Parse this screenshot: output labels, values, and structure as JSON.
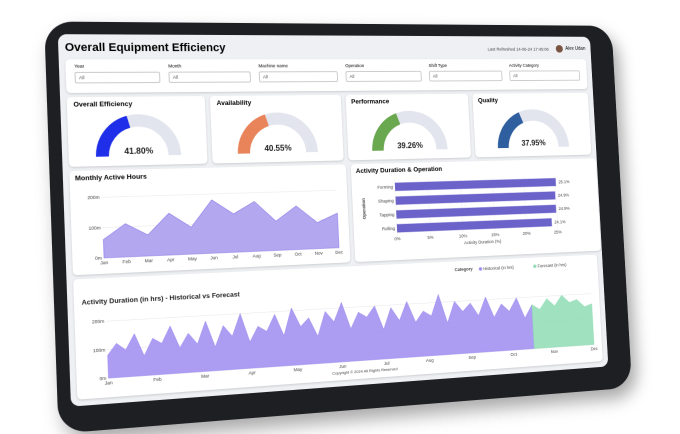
{
  "header": {
    "title": "Overall Equipment Efficiency",
    "last_refreshed": "Last Refreshed 14-06-24 17:45:06",
    "user": "Alex Udan"
  },
  "filters": [
    {
      "label": "Year",
      "value": "All"
    },
    {
      "label": "Month",
      "value": "All"
    },
    {
      "label": "Machine name",
      "value": "All"
    },
    {
      "label": "Operation",
      "value": "All"
    },
    {
      "label": "Shift Type",
      "value": "All"
    },
    {
      "label": "Activity Category",
      "value": "All"
    }
  ],
  "gauges": [
    {
      "title": "Overall Efficiency",
      "value": 41.8,
      "value_label": "41.80%",
      "color": "#1f2ee8"
    },
    {
      "title": "Availability",
      "value": 40.55,
      "value_label": "40.55%",
      "color": "#e8835a"
    },
    {
      "title": "Performance",
      "value": 39.26,
      "value_label": "39.26%",
      "color": "#6aa84f"
    },
    {
      "title": "Quality",
      "value": 37.95,
      "value_label": "37.95%",
      "color": "#2f5f9e"
    }
  ],
  "monthly_active_hours": {
    "title": "Monthly Active Hours",
    "categories": [
      "Jan",
      "Feb",
      "Mar",
      "Apr",
      "May",
      "Jun",
      "Jul",
      "Aug",
      "Sep",
      "Oct",
      "Nov",
      "Dec"
    ],
    "values": [
      60,
      110,
      70,
      140,
      90,
      180,
      130,
      170,
      100,
      150,
      90,
      120
    ],
    "ylim": [
      0,
      230
    ],
    "yticks": [
      {
        "value": 0,
        "label": "0m"
      },
      {
        "value": 100,
        "label": "100m"
      },
      {
        "value": 200,
        "label": "200m"
      }
    ],
    "color": "#b3a8f0"
  },
  "activity_operation": {
    "title": "Activity Duration & Operation",
    "categories": [
      "Forming",
      "Shaping",
      "Tapping",
      "Rolling"
    ],
    "values": [
      25.1,
      24.9,
      24.9,
      24.1
    ],
    "value_labels": [
      "25.1%",
      "24.9%",
      "24.9%",
      "24.1%"
    ],
    "xlim": [
      0,
      26
    ],
    "xticks": [
      {
        "value": 0,
        "label": "0%"
      },
      {
        "value": 5,
        "label": "5%"
      },
      {
        "value": 10,
        "label": "10%"
      },
      {
        "value": 15,
        "label": "15%"
      },
      {
        "value": 20,
        "label": "20%"
      },
      {
        "value": 25,
        "label": "25%"
      }
    ],
    "x_label": "Activity Duration (%)",
    "y_label": "Operation",
    "color": "#6b63c9"
  },
  "historical_forecast": {
    "title": "Activity Duration (in hrs) - Historical vs Forecast",
    "legend_title": "Category",
    "month_labels": [
      "Jan",
      "Feb",
      "Mar",
      "Apr",
      "May",
      "Jun",
      "Jul",
      "Aug",
      "Sep",
      "Oct",
      "Nov",
      "Dec"
    ],
    "ylim": [
      0,
      240
    ],
    "yticks": [
      {
        "value": 0,
        "label": "0m"
      },
      {
        "value": 100,
        "label": "100m"
      },
      {
        "value": 200,
        "label": "200m"
      }
    ],
    "series": [
      {
        "name": "Historical (in hrs)",
        "color": "#9d8cf0",
        "values": [
          80,
          120,
          95,
          150,
          70,
          130,
          110,
          170,
          90,
          140,
          100,
          180,
          85,
          160,
          120,
          200,
          95,
          150,
          130,
          190,
          110,
          210,
          140,
          170,
          100,
          190,
          150,
          220,
          120,
          180,
          160,
          200,
          110,
          190,
          140,
          210,
          130,
          170,
          150,
          230,
          120,
          200,
          160,
          190,
          140,
          210,
          130,
          180,
          150,
          200,
          120,
          170,
          null,
          null,
          null,
          null,
          null,
          null,
          null,
          null
        ]
      },
      {
        "name": "Forecast (in hrs)",
        "color": "#8fdcb4",
        "values": [
          null,
          null,
          null,
          null,
          null,
          null,
          null,
          null,
          null,
          null,
          null,
          null,
          null,
          null,
          null,
          null,
          null,
          null,
          null,
          null,
          null,
          null,
          null,
          null,
          null,
          null,
          null,
          null,
          null,
          null,
          null,
          null,
          null,
          null,
          null,
          null,
          null,
          null,
          null,
          null,
          null,
          null,
          null,
          null,
          null,
          null,
          null,
          null,
          null,
          null,
          null,
          170,
          150,
          190,
          160,
          200,
          170,
          180,
          150,
          160
        ]
      }
    ]
  },
  "footer": "Copyright © 2024 All Rights Reserved"
}
